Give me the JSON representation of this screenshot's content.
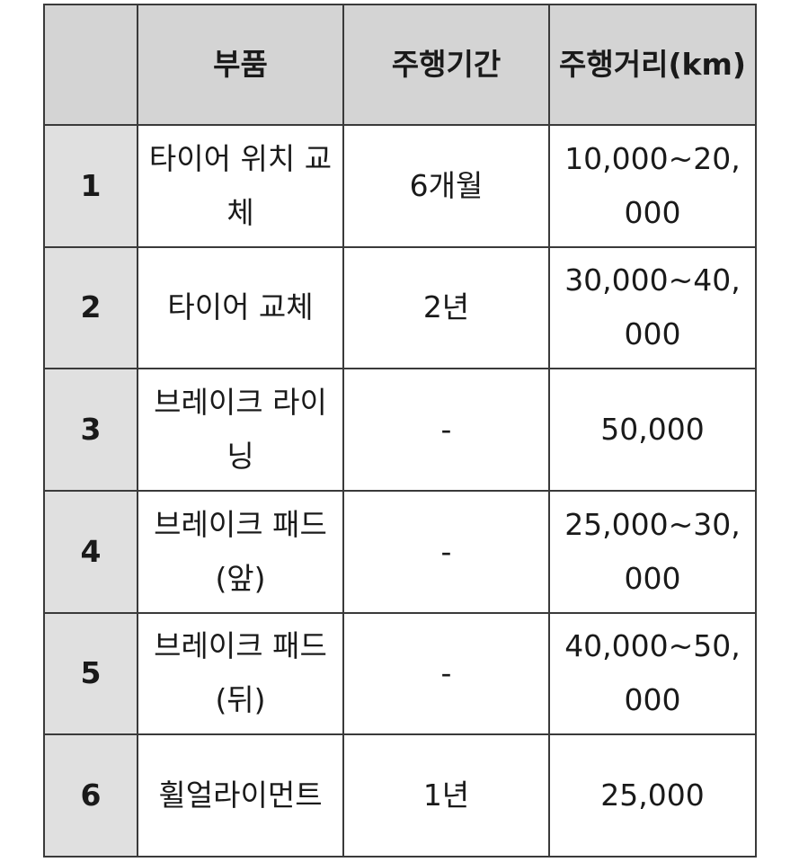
{
  "table": {
    "headers": [
      "",
      "부품",
      "주행기간",
      "주행거리(km)"
    ],
    "rows": [
      {
        "no": "1",
        "part": "타이어 위치 교체",
        "period": "6개월",
        "distance": "10,000~20,000"
      },
      {
        "no": "2",
        "part": "타이어 교체",
        "period": "2년",
        "distance": "30,000~40,000"
      },
      {
        "no": "3",
        "part": "브레이크 라이닝",
        "period": "-",
        "distance": "50,000"
      },
      {
        "no": "4",
        "part": "브레이크 패드(앞)",
        "period": "-",
        "distance": "25,000~30,000"
      },
      {
        "no": "5",
        "part": "브레이크 패드(뒤)",
        "period": "-",
        "distance": "40,000~50,000"
      },
      {
        "no": "6",
        "part": "휠얼라이먼트",
        "period": "1년",
        "distance": "25,000"
      }
    ]
  }
}
